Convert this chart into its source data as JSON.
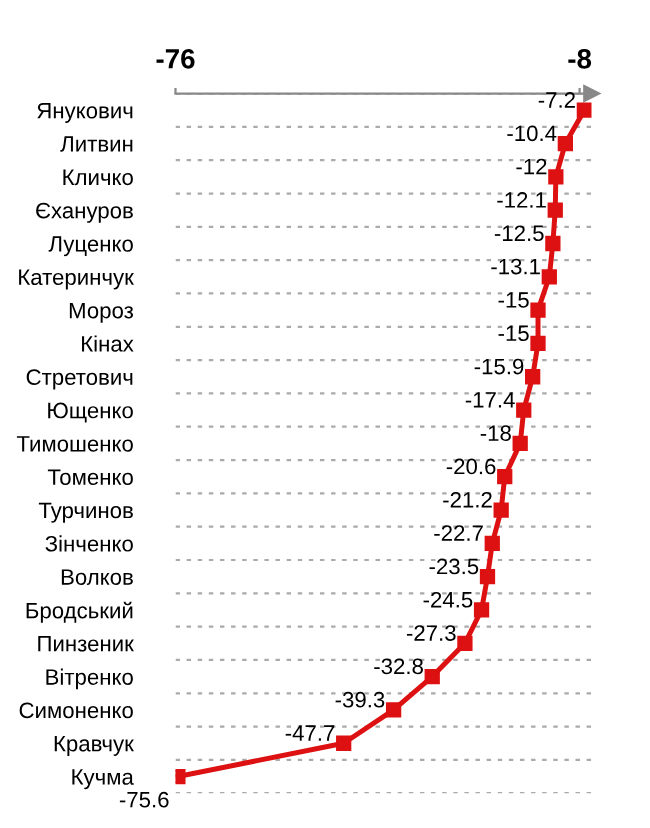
{
  "chart_data": {
    "type": "line",
    "orientation": "horizontal",
    "categories": [
      "Янукович",
      "Литвин",
      "Кличко",
      "Єхануров",
      "Луценко",
      "Катеринчук",
      "Мороз",
      "Кінах",
      "Стретович",
      "Ющенко",
      "Тимошенко",
      "Томенко",
      "Турчинов",
      "Зінченко",
      "Волков",
      "Бродський",
      "Пинзеник",
      "Вітренко",
      "Симоненко",
      "Кравчук",
      "Кучма"
    ],
    "series": [
      {
        "color": "#dd1111",
        "values": [
          -7.2,
          -10.4,
          -12,
          -12.1,
          -12.5,
          -13.1,
          -15,
          -15,
          -15.9,
          -17.4,
          -18,
          -20.6,
          -21.2,
          -22.7,
          -23.5,
          -24.5,
          -27.3,
          -32.8,
          -39.3,
          -47.7,
          -75.6
        ]
      }
    ],
    "xlim": [
      -76,
      -6
    ],
    "xticks": [
      -76,
      -8
    ],
    "data_labels": true,
    "marker": "square",
    "line_style": "solid",
    "grid": "y"
  }
}
